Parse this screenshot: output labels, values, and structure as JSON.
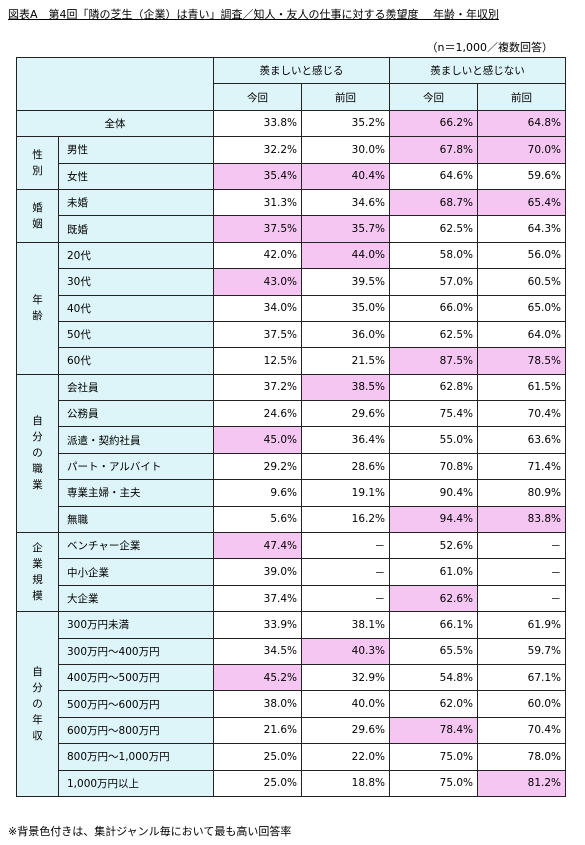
{
  "title": "図表A　第4回「隣の芝生（企業）は青い」調査／知人・友人の仕事に対する羨望度　 年齢・年収別",
  "sample_note": "（n＝1,000／複数回答）",
  "header": {
    "envy": "羨ましいと感じる",
    "no_envy": "羨ましいと感じない",
    "current": "今回",
    "previous": "前回"
  },
  "total": {
    "label": "全体",
    "values": [
      "33.8%",
      "35.2%",
      "66.2%",
      "64.8%"
    ],
    "highlight": [
      2,
      3
    ]
  },
  "groups": [
    {
      "label": "性\n別",
      "rows": [
        {
          "label": "男性",
          "values": [
            "32.2%",
            "30.0%",
            "67.8%",
            "70.0%"
          ],
          "highlight": [
            2,
            3
          ]
        },
        {
          "label": "女性",
          "values": [
            "35.4%",
            "40.4%",
            "64.6%",
            "59.6%"
          ],
          "highlight": [
            0,
            1
          ]
        }
      ]
    },
    {
      "label": "婚\n姻",
      "rows": [
        {
          "label": "未婚",
          "values": [
            "31.3%",
            "34.6%",
            "68.7%",
            "65.4%"
          ],
          "highlight": [
            2,
            3
          ]
        },
        {
          "label": "既婚",
          "values": [
            "37.5%",
            "35.7%",
            "62.5%",
            "64.3%"
          ],
          "highlight": [
            0,
            1
          ]
        }
      ]
    },
    {
      "label": "年\n齢",
      "rows": [
        {
          "label": "20代",
          "values": [
            "42.0%",
            "44.0%",
            "58.0%",
            "56.0%"
          ],
          "highlight": [
            1
          ]
        },
        {
          "label": "30代",
          "values": [
            "43.0%",
            "39.5%",
            "57.0%",
            "60.5%"
          ],
          "highlight": [
            0
          ]
        },
        {
          "label": "40代",
          "values": [
            "34.0%",
            "35.0%",
            "66.0%",
            "65.0%"
          ],
          "highlight": []
        },
        {
          "label": "50代",
          "values": [
            "37.5%",
            "36.0%",
            "62.5%",
            "64.0%"
          ],
          "highlight": []
        },
        {
          "label": "60代",
          "values": [
            "12.5%",
            "21.5%",
            "87.5%",
            "78.5%"
          ],
          "highlight": [
            2,
            3
          ]
        }
      ]
    },
    {
      "label": "自\n分\nの\n職\n業",
      "rows": [
        {
          "label": "会社員",
          "values": [
            "37.2%",
            "38.5%",
            "62.8%",
            "61.5%"
          ],
          "highlight": [
            1
          ]
        },
        {
          "label": "公務員",
          "values": [
            "24.6%",
            "29.6%",
            "75.4%",
            "70.4%"
          ],
          "highlight": []
        },
        {
          "label": "派遣・契約社員",
          "values": [
            "45.0%",
            "36.4%",
            "55.0%",
            "63.6%"
          ],
          "highlight": [
            0
          ]
        },
        {
          "label": "パート・アルバイト",
          "values": [
            "29.2%",
            "28.6%",
            "70.8%",
            "71.4%"
          ],
          "highlight": []
        },
        {
          "label": "専業主婦・主夫",
          "values": [
            "9.6%",
            "19.1%",
            "90.4%",
            "80.9%"
          ],
          "highlight": []
        },
        {
          "label": "無職",
          "values": [
            "5.6%",
            "16.2%",
            "94.4%",
            "83.8%"
          ],
          "highlight": [
            2,
            3
          ]
        }
      ]
    },
    {
      "label": "企\n業\n規\n模",
      "rows": [
        {
          "label": "ベンチャー企業",
          "values": [
            "47.4%",
            "－",
            "52.6%",
            "－"
          ],
          "highlight": [
            0
          ]
        },
        {
          "label": "中小企業",
          "values": [
            "39.0%",
            "－",
            "61.0%",
            "－"
          ],
          "highlight": []
        },
        {
          "label": "大企業",
          "values": [
            "37.4%",
            "－",
            "62.6%",
            "－"
          ],
          "highlight": [
            2
          ]
        }
      ]
    },
    {
      "label": "自\n分\nの\n年\n収",
      "rows": [
        {
          "label": "300万円未満",
          "values": [
            "33.9%",
            "38.1%",
            "66.1%",
            "61.9%"
          ],
          "highlight": []
        },
        {
          "label": "300万円～400万円",
          "values": [
            "34.5%",
            "40.3%",
            "65.5%",
            "59.7%"
          ],
          "highlight": [
            1
          ]
        },
        {
          "label": "400万円～500万円",
          "values": [
            "45.2%",
            "32.9%",
            "54.8%",
            "67.1%"
          ],
          "highlight": [
            0
          ]
        },
        {
          "label": "500万円～600万円",
          "values": [
            "38.0%",
            "40.0%",
            "62.0%",
            "60.0%"
          ],
          "highlight": []
        },
        {
          "label": "600万円～800万円",
          "values": [
            "21.6%",
            "29.6%",
            "78.4%",
            "70.4%"
          ],
          "highlight": [
            2
          ]
        },
        {
          "label": "800万円～1,000万円",
          "values": [
            "25.0%",
            "22.0%",
            "75.0%",
            "78.0%"
          ],
          "highlight": []
        },
        {
          "label": "1,000万円以上",
          "values": [
            "25.0%",
            "18.8%",
            "75.0%",
            "81.2%"
          ],
          "highlight": [
            3
          ]
        }
      ]
    }
  ],
  "footnote": "※背景色付きは、集計ジャンル毎において最も高い回答率",
  "colors": {
    "header_bg": "#ddf5f9",
    "highlight_bg": "#f5c6f2",
    "border": "#222222"
  }
}
